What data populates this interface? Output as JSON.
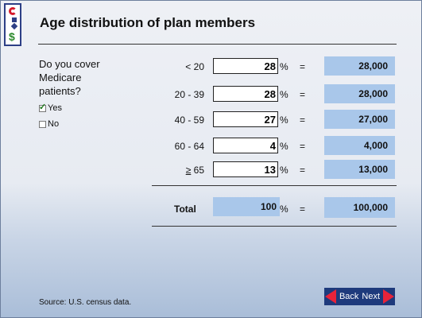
{
  "title": "Age distribution of plan members",
  "question": {
    "text": "Do you cover\nMedicare\npatients?",
    "options": [
      {
        "label": "Yes",
        "checked": true
      },
      {
        "label": "No",
        "checked": false
      }
    ]
  },
  "rows": [
    {
      "range": "< 20",
      "percent": "28",
      "pct_sign": "%",
      "eq": "=",
      "result": "28,000"
    },
    {
      "range": "20 - 39",
      "percent": "28",
      "pct_sign": "%",
      "eq": "=",
      "result": "28,000"
    },
    {
      "range": "40 - 59",
      "percent": "27",
      "pct_sign": "%",
      "eq": "=",
      "result": "27,000"
    },
    {
      "range": "60 - 64",
      "percent": "4",
      "pct_sign": "%",
      "eq": "=",
      "result": "4,000"
    },
    {
      "range_ge": "≥",
      "range": " 65",
      "percent": "13",
      "pct_sign": "%",
      "eq": "=",
      "result": "13,000"
    }
  ],
  "total": {
    "label": "Total",
    "percent": "100",
    "pct_sign": "%",
    "eq": "=",
    "result": "100,000"
  },
  "source": "Source: U.S. census data.",
  "nav": {
    "back": "Back",
    "next": "Next"
  },
  "colors": {
    "accent": "#a9c7ea",
    "nav_bg": "#1e3a7c",
    "arrow": "#e8233a"
  }
}
